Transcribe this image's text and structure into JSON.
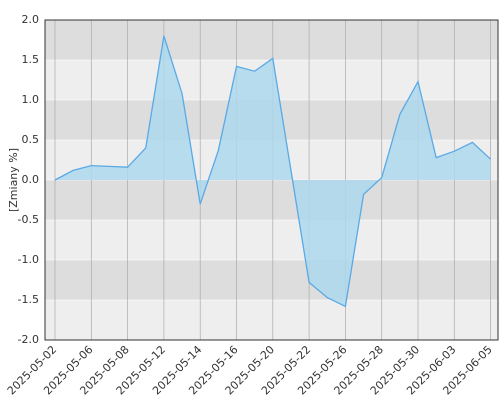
{
  "chart_data": {
    "type": "area",
    "y_label": "[Zmiany %]",
    "x": [
      "2025-05-02",
      "2025-05-05",
      "2025-05-06",
      "2025-05-07",
      "2025-05-08",
      "2025-05-09",
      "2025-05-12",
      "2025-05-13",
      "2025-05-14",
      "2025-05-15",
      "2025-05-16",
      "2025-05-19",
      "2025-05-20",
      "2025-05-21",
      "2025-05-22",
      "2025-05-23",
      "2025-05-26",
      "2025-05-27",
      "2025-05-28",
      "2025-05-29",
      "2025-05-30",
      "2025-06-02",
      "2025-06-03",
      "2025-06-04",
      "2025-06-05"
    ],
    "values": [
      0,
      0.12,
      0.18,
      0.17,
      0.16,
      0.4,
      1.8,
      1.08,
      -0.3,
      0.37,
      1.42,
      1.36,
      1.52,
      0.12,
      -1.28,
      -1.47,
      -1.58,
      -0.18,
      0.03,
      0.82,
      1.23,
      0.28,
      0.36,
      0.47,
      0.26
    ],
    "color": "#5aa9e6",
    "fill": "#add8ec",
    "xticks": [
      "2025-05-02",
      "2025-05-06",
      "2025-05-08",
      "2025-05-12",
      "2025-05-14",
      "2025-05-16",
      "2025-05-20",
      "2025-05-22",
      "2025-05-26",
      "2025-05-28",
      "2025-05-30",
      "2025-06-03",
      "2025-06-05"
    ],
    "ylim": [
      -2,
      2
    ],
    "yticks": [
      {
        "value": 2,
        "label": "2.0"
      },
      1.5,
      {
        "value": 1,
        "label": "1.0"
      },
      0.5,
      {
        "value": 0,
        "label": "0.0"
      },
      -0.5,
      {
        "value": -1,
        "label": "-1.0"
      },
      -1.5,
      {
        "value": -2,
        "label": "-2.0"
      }
    ],
    "grid": true
  }
}
